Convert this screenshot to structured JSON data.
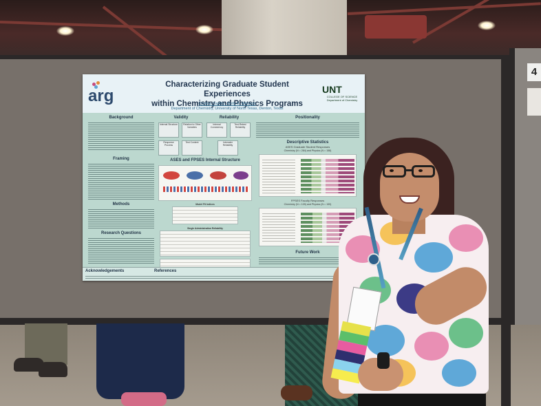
{
  "poster": {
    "logo": "arg",
    "title_line1": "Characterizing Graduate Student Experiences",
    "title_line2": "within Chemistry and Physics Programs",
    "authors": "Cristina Castillo, Molly B. Atkinson",
    "affiliation": "Department of Chemistry, University of North Texas, Denton, Texas",
    "institution_logo": "UNT",
    "institution_sub1": "COLLEGE OF SCIENCE",
    "institution_sub2": "Department of Chemistry",
    "sections": {
      "background": "Background",
      "framing": "Framing",
      "methods": "Methods",
      "research_questions": "Research Questions",
      "validity": "Validity",
      "reliability": "Reliability",
      "positionality": "Positionality",
      "descriptive_statistics": "Descriptive Statistics",
      "ases_fpses": "ASES and FPSES Internal Structure",
      "future_work": "Future Work",
      "acknowledgements": "Acknowledgements",
      "references": "References"
    },
    "validity_items": [
      "Internal Structure",
      "Relation to Other Variables",
      "Response Process",
      "Test Content"
    ],
    "reliability_items": [
      "Internal Consistency",
      "Test-Retest Reliability",
      "Interrater Reliability"
    ],
    "ases_subtitle": "ASES Graduate Student Responses",
    "ases_counts": "Chemistry (N = 284) and Physics (N = 158)",
    "fpses_subtitle": "FPSES Faculty Responses",
    "fpses_counts": "Chemistry (N = 109) and Physics (N = 159)",
    "model_fit": "Model Fit Indices",
    "single_admin": "Single Administration Reliability"
  },
  "booth": {
    "number": "4"
  },
  "colors": {
    "poster_bg": "#bcd8cf",
    "header_bg": "#e8f2f6",
    "title": "#22364f",
    "top_pink": "#e98fb4",
    "top_blue": "#5fa8d8",
    "top_green": "#6cc08a"
  }
}
